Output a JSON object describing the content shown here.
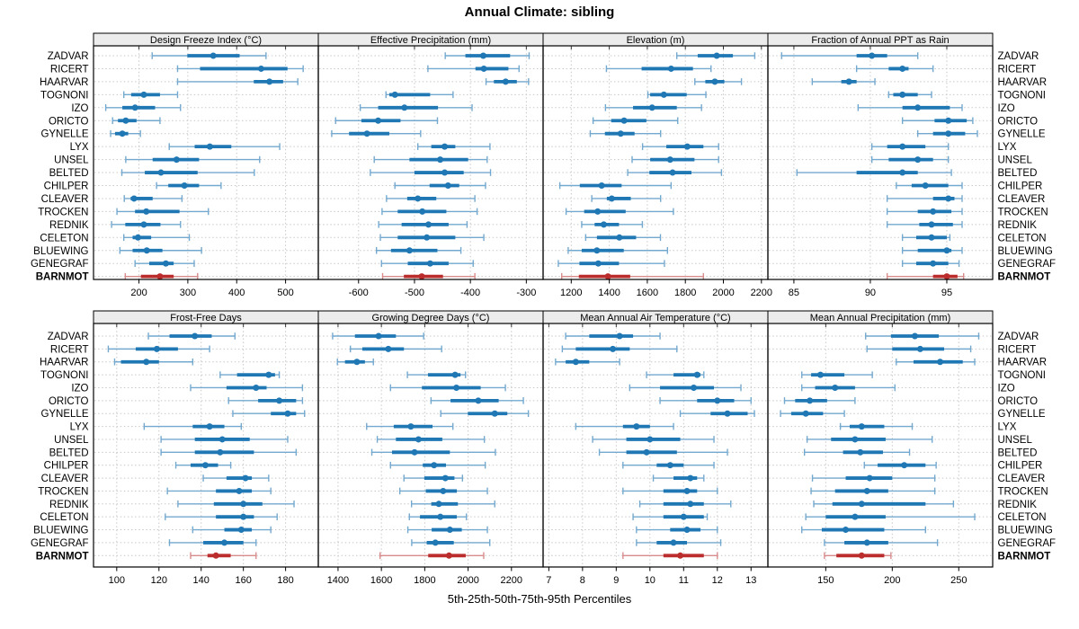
{
  "title": "Annual Climate: sibling",
  "caption": "5th-25th-50th-75th-95th Percentiles",
  "percentile_labels": [
    "5th",
    "25th",
    "50th",
    "75th",
    "95th"
  ],
  "highlight_station": "BARNMOT",
  "colors": {
    "series": "#1f77b4",
    "series_light": "#74a9cf",
    "highlight": "#bb2d2d",
    "highlight_light": "#d98c8c",
    "grid": "#c8c8c8",
    "strip_bg": "#ececec",
    "border": "#000000",
    "text": "#000000"
  },
  "stations": [
    "ZADVAR",
    "RICERT",
    "HAARVAR",
    "TOGNONI",
    "IZO",
    "ORICTO",
    "GYNELLE",
    "LYX",
    "UNSEL",
    "BELTED",
    "CHILPER",
    "CLEAVER",
    "TROCKEN",
    "REDNIK",
    "CELETON",
    "BLUEWING",
    "GENEGRAF",
    "BARNMOT"
  ],
  "chart_data": {
    "type": "dotplot-trellis",
    "layout": "2 rows x 4 columns",
    "rows": [
      "ZADVAR",
      "RICERT",
      "HAARVAR",
      "TOGNONI",
      "IZO",
      "ORICTO",
      "GYNELLE",
      "LYX",
      "UNSEL",
      "BELTED",
      "CHILPER",
      "CLEAVER",
      "TROCKEN",
      "REDNIK",
      "CELETON",
      "BLUEWING",
      "GENEGRAF",
      "BARNMOT"
    ],
    "panels": [
      {
        "label": "Design Freeze Index (°C)",
        "xlim": [
          107,
          567
        ],
        "ticks": [
          200,
          300,
          400,
          500
        ],
        "values": [
          [
            227,
            299,
            352,
            406,
            460
          ],
          [
            279,
            325,
            450,
            504,
            536
          ],
          [
            279,
            435,
            467,
            495,
            525
          ],
          [
            169,
            184,
            210,
            243,
            279
          ],
          [
            132,
            166,
            192,
            233,
            285
          ],
          [
            146,
            157,
            173,
            195,
            243
          ],
          [
            142,
            151,
            166,
            178,
            203
          ],
          [
            262,
            314,
            345,
            389,
            488
          ],
          [
            173,
            228,
            277,
            323,
            447
          ],
          [
            165,
            212,
            245,
            320,
            436
          ],
          [
            236,
            260,
            293,
            323,
            368
          ],
          [
            170,
            183,
            190,
            228,
            288
          ],
          [
            155,
            192,
            215,
            283,
            342
          ],
          [
            144,
            172,
            210,
            244,
            285
          ],
          [
            169,
            187,
            198,
            225,
            303
          ],
          [
            161,
            187,
            216,
            248,
            328
          ],
          [
            192,
            221,
            255,
            271,
            313
          ],
          [
            172,
            204,
            243,
            271,
            320
          ]
        ]
      },
      {
        "label": "Effective Precipitation (mm)",
        "xlim": [
          -672,
          -270
        ],
        "ticks": [
          -600,
          -500,
          -400,
          -300
        ],
        "values": [
          [
            -445,
            -409,
            -377,
            -329,
            -295
          ],
          [
            -476,
            -391,
            -376,
            -332,
            -313
          ],
          [
            -372,
            -358,
            -337,
            -317,
            -296
          ],
          [
            -551,
            -545,
            -535,
            -472,
            -431
          ],
          [
            -597,
            -565,
            -518,
            -458,
            -397
          ],
          [
            -641,
            -595,
            -565,
            -525,
            -459
          ],
          [
            -648,
            -617,
            -585,
            -545,
            -489
          ],
          [
            -494,
            -470,
            -446,
            -427,
            -365
          ],
          [
            -572,
            -509,
            -454,
            -404,
            -370
          ],
          [
            -579,
            -500,
            -446,
            -412,
            -364
          ],
          [
            -535,
            -473,
            -440,
            -420,
            -373
          ],
          [
            -550,
            -513,
            -494,
            -461,
            -392
          ],
          [
            -558,
            -530,
            -486,
            -443,
            -388
          ],
          [
            -564,
            -523,
            -475,
            -439,
            -406
          ],
          [
            -561,
            -530,
            -478,
            -427,
            -376
          ],
          [
            -568,
            -542,
            -509,
            -459,
            -417
          ],
          [
            -559,
            -512,
            -472,
            -439,
            -395
          ],
          [
            -557,
            -519,
            -487,
            -449,
            -392
          ]
        ]
      },
      {
        "label": "Elevation (m)",
        "xlim": [
          1052,
          2234
        ],
        "ticks": [
          1200,
          1400,
          1600,
          1800,
          2000,
          2200
        ],
        "values": [
          [
            1755,
            1865,
            1965,
            2050,
            2165
          ],
          [
            1385,
            1570,
            1725,
            1840,
            1935
          ],
          [
            1850,
            1905,
            1955,
            2005,
            2095
          ],
          [
            1603,
            1615,
            1687,
            1807,
            1908
          ],
          [
            1380,
            1525,
            1625,
            1755,
            1885
          ],
          [
            1315,
            1410,
            1478,
            1595,
            1760
          ],
          [
            1300,
            1377,
            1460,
            1533,
            1670
          ],
          [
            1575,
            1700,
            1810,
            1895,
            1975
          ],
          [
            1520,
            1615,
            1720,
            1848,
            1975
          ],
          [
            1497,
            1611,
            1733,
            1832,
            1990
          ],
          [
            1140,
            1245,
            1360,
            1465,
            1725
          ],
          [
            1308,
            1387,
            1413,
            1513,
            1670
          ],
          [
            1173,
            1268,
            1339,
            1486,
            1737
          ],
          [
            1255,
            1323,
            1371,
            1451,
            1574
          ],
          [
            1276,
            1335,
            1453,
            1541,
            1669
          ],
          [
            1184,
            1255,
            1335,
            1476,
            1706
          ],
          [
            1132,
            1243,
            1342,
            1451,
            1690
          ],
          [
            1150,
            1240,
            1393,
            1510,
            1895
          ]
        ]
      },
      {
        "label": "Fraction of Annual PPT as Rain",
        "xlim": [
          83.3,
          98.0
        ],
        "ticks": [
          85,
          90,
          95
        ],
        "values": [
          [
            84.2,
            89.1,
            90.1,
            91.1,
            93.1
          ],
          [
            89.1,
            91.2,
            92.1,
            92.5,
            94.1
          ],
          [
            86.2,
            88.1,
            88.6,
            89.1,
            90.3
          ],
          [
            91.2,
            91.5,
            92.1,
            93.1,
            94.0
          ],
          [
            89.2,
            92.1,
            93.1,
            95.2,
            96.0
          ],
          [
            92.1,
            94.2,
            95.1,
            96.3,
            96.7
          ],
          [
            93.1,
            94.1,
            95.1,
            96.2,
            97.0
          ],
          [
            90.1,
            91.1,
            92.1,
            93.6,
            95.1
          ],
          [
            90.1,
            91.2,
            93.1,
            94.1,
            95.1
          ],
          [
            85.2,
            89.1,
            92.1,
            93.1,
            95.3
          ],
          [
            91.7,
            92.7,
            93.6,
            95.1,
            96.0
          ],
          [
            91.1,
            94.1,
            95.1,
            95.5,
            96.0
          ],
          [
            91.1,
            93.1,
            94.1,
            95.3,
            96.0
          ],
          [
            91.1,
            93.2,
            94.0,
            95.4,
            96.0
          ],
          [
            92.1,
            93.0,
            94.0,
            95.0,
            95.2
          ],
          [
            92.1,
            93.1,
            95.0,
            95.3,
            96.0
          ],
          [
            92.1,
            93.0,
            94.1,
            95.1,
            95.8
          ],
          [
            91.1,
            94.1,
            95.0,
            95.7,
            96.1
          ]
        ]
      },
      {
        "label": "Frost-Free Days",
        "xlim": [
          89,
          195.5
        ],
        "ticks": [
          100,
          120,
          140,
          160,
          180
        ],
        "values": [
          [
            115,
            125,
            137,
            145,
            156
          ],
          [
            96,
            109,
            119,
            129,
            144
          ],
          [
            99,
            102,
            114,
            120,
            136
          ],
          [
            149,
            157,
            172,
            175,
            177
          ],
          [
            135,
            152,
            166,
            171,
            188
          ],
          [
            153,
            167,
            177,
            185,
            188
          ],
          [
            155,
            173,
            181,
            185,
            189
          ],
          [
            113,
            136,
            144,
            151,
            159
          ],
          [
            121,
            137,
            150,
            163,
            181
          ],
          [
            121,
            137,
            149,
            165,
            185
          ],
          [
            128,
            135,
            142,
            148,
            154
          ],
          [
            141,
            152,
            161,
            164,
            172
          ],
          [
            124,
            147,
            158,
            164,
            173
          ],
          [
            129,
            146,
            160,
            169,
            184
          ],
          [
            123,
            147,
            160,
            165,
            176
          ],
          [
            136,
            151,
            159,
            164,
            173
          ],
          [
            125,
            141,
            151,
            160,
            166
          ],
          [
            135,
            143,
            147,
            154,
            166
          ]
        ]
      },
      {
        "label": "Growing Degree Days (°C)",
        "xlim": [
          1309,
          2346
        ],
        "ticks": [
          1400,
          1600,
          1800,
          2000,
          2200
        ],
        "values": [
          [
            1375,
            1478,
            1587,
            1667,
            1795
          ],
          [
            1457,
            1512,
            1632,
            1704,
            1878
          ],
          [
            1397,
            1432,
            1487,
            1524,
            1563
          ],
          [
            1720,
            1815,
            1940,
            1965,
            1988
          ],
          [
            1642,
            1787,
            1946,
            2058,
            2172
          ],
          [
            1829,
            1919,
            2047,
            2141,
            2255
          ],
          [
            1874,
            1999,
            2123,
            2181,
            2278
          ],
          [
            1532,
            1657,
            1736,
            1836,
            1930
          ],
          [
            1581,
            1667,
            1771,
            1881,
            2075
          ],
          [
            1556,
            1649,
            1753,
            1916,
            2126
          ],
          [
            1642,
            1791,
            1843,
            1898,
            2079
          ],
          [
            1704,
            1798,
            1895,
            1937,
            1974
          ],
          [
            1685,
            1805,
            1885,
            1948,
            2089
          ],
          [
            1739,
            1830,
            1865,
            1953,
            2123
          ],
          [
            1729,
            1778,
            1872,
            1948,
            1992
          ],
          [
            1722,
            1832,
            1916,
            1971,
            2089
          ],
          [
            1740,
            1809,
            1849,
            1934,
            2100
          ],
          [
            1594,
            1816,
            1912,
            1989,
            2072
          ]
        ]
      },
      {
        "label": "Mean Annual Air Temperature (°C)",
        "xlim": [
          6.83,
          13.5
        ],
        "ticks": [
          7,
          8,
          9,
          10,
          11,
          12,
          13
        ],
        "values": [
          [
            7.5,
            8.2,
            9.1,
            9.5,
            10.3
          ],
          [
            7.4,
            7.8,
            8.9,
            9.4,
            10.8
          ],
          [
            7.2,
            7.5,
            7.8,
            8.2,
            9.1
          ],
          [
            9.9,
            10.7,
            11.4,
            11.5,
            11.6
          ],
          [
            9.4,
            10.3,
            11.3,
            11.9,
            12.7
          ],
          [
            10.3,
            11.4,
            12.0,
            12.5,
            13.0
          ],
          [
            10.9,
            11.8,
            12.3,
            12.9,
            13.1
          ],
          [
            7.8,
            9.2,
            9.6,
            10.0,
            10.7
          ],
          [
            8.3,
            9.3,
            10.0,
            10.9,
            11.9
          ],
          [
            8.5,
            9.3,
            9.9,
            10.8,
            12.3
          ],
          [
            9.2,
            10.2,
            10.6,
            11.0,
            11.9
          ],
          [
            10.1,
            10.7,
            11.2,
            11.4,
            11.6
          ],
          [
            9.2,
            10.4,
            11.1,
            11.4,
            12.0
          ],
          [
            9.7,
            10.4,
            11.2,
            11.6,
            12.4
          ],
          [
            9.5,
            10.4,
            11.0,
            11.6,
            11.7
          ],
          [
            9.6,
            10.6,
            11.1,
            11.5,
            12.0
          ],
          [
            9.6,
            10.2,
            10.7,
            11.1,
            12.1
          ],
          [
            9.2,
            10.4,
            10.9,
            11.6,
            12.0
          ]
        ]
      },
      {
        "label": "Mean Annual Precipitation (mm)",
        "xlim": [
          106.5,
          275.5
        ],
        "ticks": [
          150,
          200,
          250
        ],
        "values": [
          [
            180,
            199,
            217,
            235,
            265
          ],
          [
            181,
            200,
            221,
            239,
            259
          ],
          [
            203,
            216,
            236,
            253,
            262
          ],
          [
            132,
            139,
            146,
            164,
            185
          ],
          [
            132,
            142,
            157,
            172,
            202
          ],
          [
            119,
            127,
            138,
            151,
            172
          ],
          [
            116,
            124,
            135,
            148,
            164
          ],
          [
            161,
            168,
            177,
            194,
            215
          ],
          [
            136,
            154,
            172,
            195,
            230
          ],
          [
            134,
            163,
            176,
            193,
            213
          ],
          [
            179,
            189,
            209,
            225,
            233
          ],
          [
            140,
            165,
            183,
            200,
            232
          ],
          [
            139,
            157,
            181,
            197,
            232
          ],
          [
            141,
            155,
            177,
            225,
            246
          ],
          [
            135,
            150,
            172,
            195,
            262
          ],
          [
            132,
            147,
            165,
            194,
            225
          ],
          [
            149,
            164,
            181,
            197,
            234
          ],
          [
            149,
            158,
            177,
            194,
            199
          ]
        ]
      }
    ]
  }
}
